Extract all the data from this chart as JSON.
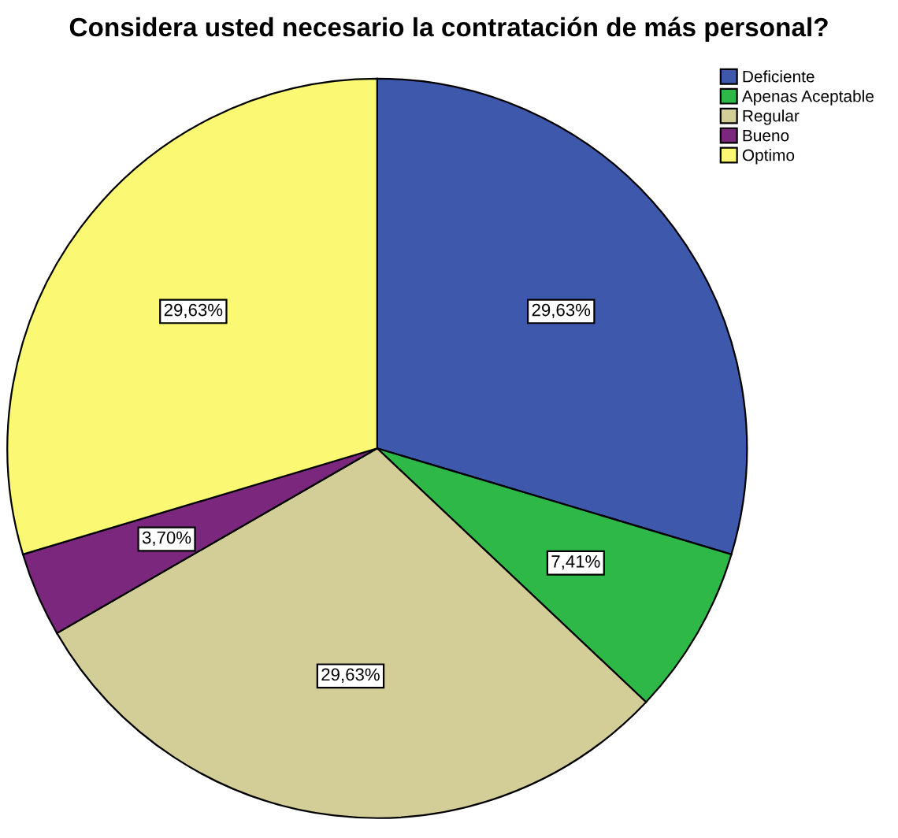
{
  "chart_data": {
    "type": "pie",
    "title": "Considera usted necesario la contratación de más personal?",
    "categories": [
      "Deficiente",
      "Apenas Aceptable",
      "Regular",
      "Bueno",
      "Optimo"
    ],
    "values": [
      29.63,
      7.41,
      29.63,
      3.7,
      29.63
    ],
    "value_labels": [
      "29,63%",
      "7,41%",
      "29,63%",
      "3,70%",
      "29,63%"
    ],
    "colors": [
      "#3e58ac",
      "#2eb848",
      "#d3ce97",
      "#7b277e",
      "#fbf873"
    ],
    "legend": "top right"
  }
}
